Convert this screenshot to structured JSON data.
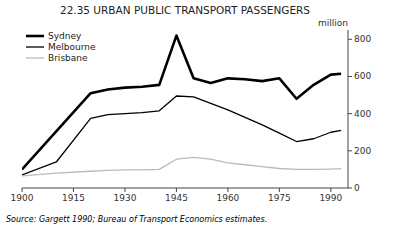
{
  "chart_data": {
    "type": "line",
    "title": "22.35   URBAN PUBLIC TRANSPORT PASSENGERS",
    "y_label": "million",
    "annotations": [
      "Source: Gargett 1990; Bureau of Transport Economics estimates."
    ],
    "xlim": [
      1900,
      1995
    ],
    "xticks": [
      1900,
      1915,
      1930,
      1945,
      1960,
      1975,
      1990
    ],
    "ylim": [
      0,
      850
    ],
    "yticks": [
      0,
      200,
      400,
      600,
      800
    ],
    "grid": false,
    "legend": "upper left",
    "series": [
      {
        "name": "Sydney",
        "color": "#000000",
        "x": [
          1900,
          1920,
          1925,
          1930,
          1935,
          1940,
          1945,
          1950,
          1955,
          1960,
          1965,
          1970,
          1975,
          1980,
          1985,
          1990,
          1993
        ],
        "values": [
          100,
          510,
          530,
          540,
          545,
          555,
          820,
          590,
          565,
          590,
          585,
          575,
          590,
          480,
          555,
          610,
          615
        ]
      },
      {
        "name": "Melbourne",
        "color": "#000000",
        "x": [
          1900,
          1910,
          1920,
          1925,
          1930,
          1935,
          1940,
          1945,
          1950,
          1955,
          1960,
          1965,
          1970,
          1975,
          1980,
          1985,
          1990,
          1993
        ],
        "values": [
          70,
          140,
          375,
          395,
          400,
          405,
          415,
          495,
          490,
          455,
          420,
          380,
          340,
          295,
          250,
          265,
          300,
          310
        ]
      },
      {
        "name": "Brisbane",
        "color": "#bbbbbb",
        "x": [
          1900,
          1910,
          1920,
          1925,
          1930,
          1935,
          1940,
          1945,
          1950,
          1955,
          1960,
          1965,
          1970,
          1975,
          1980,
          1985,
          1990,
          1993
        ],
        "values": [
          65,
          80,
          90,
          95,
          97,
          98,
          100,
          155,
          165,
          155,
          135,
          125,
          115,
          105,
          100,
          100,
          102,
          104
        ]
      }
    ]
  }
}
